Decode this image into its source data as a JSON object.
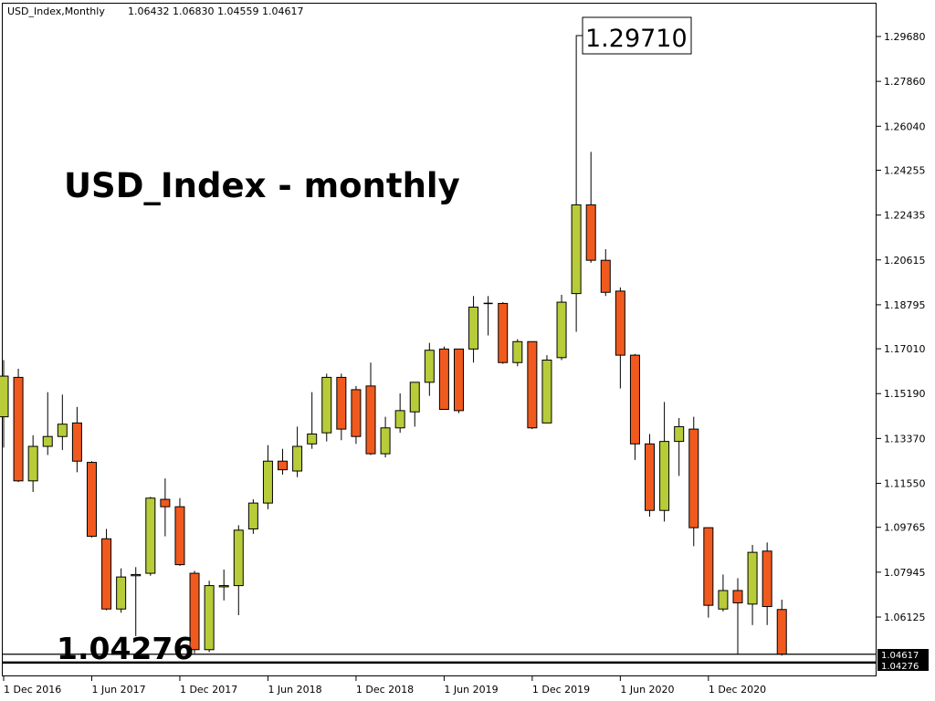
{
  "header": {
    "symbol": "USD_Index,Monthly",
    "ohlc": "1.06432 1.06830 1.04559 1.04617"
  },
  "overlay": {
    "title": "USD_Index - monthly",
    "support_label": "1.04276",
    "high_callout": "1.29710"
  },
  "price_tags": {
    "current": "1.04617",
    "support": "1.04276"
  },
  "colors": {
    "bull": "#b8cc3a",
    "bear": "#f05a1e",
    "outline": "#000000",
    "background": "#ffffff"
  },
  "chart_data": {
    "type": "candlestick",
    "title": "USD_Index - monthly",
    "timeframe": "Monthly",
    "ylim": [
      1.035,
      1.305
    ],
    "y_ticks": [
      "1.29680",
      "1.27860",
      "1.26040",
      "1.24255",
      "1.22435",
      "1.20615",
      "1.18795",
      "1.17010",
      "1.15190",
      "1.13370",
      "1.11550",
      "1.09765",
      "1.07945",
      "1.06125"
    ],
    "x_ticks": [
      {
        "label": "1 Dec 2016",
        "index": 0
      },
      {
        "label": "1 Jun 2017",
        "index": 6
      },
      {
        "label": "1 Dec 2017",
        "index": 12
      },
      {
        "label": "1 Jun 2018",
        "index": 18
      },
      {
        "label": "1 Dec 2018",
        "index": 24
      },
      {
        "label": "1 Jun 2019",
        "index": 30
      },
      {
        "label": "1 Dec 2019",
        "index": 36
      },
      {
        "label": "1 Jun 2020",
        "index": 42
      },
      {
        "label": "1 Dec 2020",
        "index": 48
      }
    ],
    "horizontal_levels": [
      1.04617,
      1.04276
    ],
    "annotated_high": 1.2971,
    "candles": [
      {
        "o": 1.1425,
        "h": 1.1655,
        "l": 1.13,
        "c": 1.159
      },
      {
        "o": 1.1585,
        "h": 1.162,
        "l": 1.116,
        "c": 1.1165
      },
      {
        "o": 1.1165,
        "h": 1.135,
        "l": 1.112,
        "c": 1.1305
      },
      {
        "o": 1.1305,
        "h": 1.1525,
        "l": 1.127,
        "c": 1.1345
      },
      {
        "o": 1.1345,
        "h": 1.1515,
        "l": 1.129,
        "c": 1.1395
      },
      {
        "o": 1.14,
        "h": 1.1465,
        "l": 1.12,
        "c": 1.1245
      },
      {
        "o": 1.124,
        "h": 1.1245,
        "l": 1.0935,
        "c": 1.094
      },
      {
        "o": 1.093,
        "h": 1.097,
        "l": 1.064,
        "c": 1.0645
      },
      {
        "o": 1.0645,
        "h": 1.081,
        "l": 1.063,
        "c": 1.0775
      },
      {
        "o": 1.078,
        "h": 1.0815,
        "l": 1.0535,
        "c": 1.0785
      },
      {
        "o": 1.079,
        "h": 1.11,
        "l": 1.078,
        "c": 1.1095
      },
      {
        "o": 1.109,
        "h": 1.1175,
        "l": 1.094,
        "c": 1.106
      },
      {
        "o": 1.106,
        "h": 1.1095,
        "l": 1.082,
        "c": 1.0825
      },
      {
        "o": 1.079,
        "h": 1.08,
        "l": 1.0465,
        "c": 1.048
      },
      {
        "o": 1.048,
        "h": 1.076,
        "l": 1.047,
        "c": 1.074
      },
      {
        "o": 1.0735,
        "h": 1.0805,
        "l": 1.068,
        "c": 1.074
      },
      {
        "o": 1.074,
        "h": 1.0985,
        "l": 1.062,
        "c": 1.0965
      },
      {
        "o": 1.097,
        "h": 1.109,
        "l": 1.095,
        "c": 1.1075
      },
      {
        "o": 1.1075,
        "h": 1.131,
        "l": 1.105,
        "c": 1.1245
      },
      {
        "o": 1.1245,
        "h": 1.1295,
        "l": 1.119,
        "c": 1.121
      },
      {
        "o": 1.1205,
        "h": 1.1385,
        "l": 1.118,
        "c": 1.1305
      },
      {
        "o": 1.1315,
        "h": 1.1525,
        "l": 1.1295,
        "c": 1.1355
      },
      {
        "o": 1.136,
        "h": 1.16,
        "l": 1.1325,
        "c": 1.1585
      },
      {
        "o": 1.1585,
        "h": 1.16,
        "l": 1.133,
        "c": 1.1375
      },
      {
        "o": 1.1535,
        "h": 1.155,
        "l": 1.1315,
        "c": 1.1345
      },
      {
        "o": 1.155,
        "h": 1.1645,
        "l": 1.127,
        "c": 1.1275
      },
      {
        "o": 1.1275,
        "h": 1.1425,
        "l": 1.126,
        "c": 1.138
      },
      {
        "o": 1.138,
        "h": 1.152,
        "l": 1.136,
        "c": 1.145
      },
      {
        "o": 1.1445,
        "h": 1.1565,
        "l": 1.1385,
        "c": 1.1565
      },
      {
        "o": 1.1565,
        "h": 1.1725,
        "l": 1.151,
        "c": 1.1695
      },
      {
        "o": 1.17,
        "h": 1.171,
        "l": 1.1455,
        "c": 1.1455
      },
      {
        "o": 1.17,
        "h": 1.17,
        "l": 1.144,
        "c": 1.145
      },
      {
        "o": 1.17,
        "h": 1.1915,
        "l": 1.1645,
        "c": 1.187
      },
      {
        "o": 1.1885,
        "h": 1.1915,
        "l": 1.1755,
        "c": 1.1885
      },
      {
        "o": 1.1885,
        "h": 1.189,
        "l": 1.164,
        "c": 1.1645
      },
      {
        "o": 1.1645,
        "h": 1.174,
        "l": 1.163,
        "c": 1.173
      },
      {
        "o": 1.173,
        "h": 1.173,
        "l": 1.1375,
        "c": 1.138
      },
      {
        "o": 1.14,
        "h": 1.1675,
        "l": 1.14,
        "c": 1.1655
      },
      {
        "o": 1.1665,
        "h": 1.192,
        "l": 1.1655,
        "c": 1.189
      },
      {
        "o": 1.1925,
        "h": 1.2971,
        "l": 1.177,
        "c": 1.2285
      },
      {
        "o": 1.2285,
        "h": 1.25,
        "l": 1.205,
        "c": 1.206
      },
      {
        "o": 1.206,
        "h": 1.2105,
        "l": 1.1915,
        "c": 1.193
      },
      {
        "o": 1.1935,
        "h": 1.195,
        "l": 1.154,
        "c": 1.1675
      },
      {
        "o": 1.1675,
        "h": 1.168,
        "l": 1.125,
        "c": 1.1315
      },
      {
        "o": 1.1315,
        "h": 1.1355,
        "l": 1.102,
        "c": 1.1045
      },
      {
        "o": 1.1045,
        "h": 1.1485,
        "l": 1.1,
        "c": 1.1325
      },
      {
        "o": 1.1325,
        "h": 1.142,
        "l": 1.1185,
        "c": 1.1385
      },
      {
        "o": 1.1375,
        "h": 1.1425,
        "l": 1.09,
        "c": 1.0975
      },
      {
        "o": 1.0975,
        "h": 1.0975,
        "l": 1.061,
        "c": 1.066
      },
      {
        "o": 1.0645,
        "h": 1.0785,
        "l": 1.0635,
        "c": 1.072
      },
      {
        "o": 1.072,
        "h": 1.077,
        "l": 1.046,
        "c": 1.067
      },
      {
        "o": 1.0665,
        "h": 1.0905,
        "l": 1.058,
        "c": 1.0875
      },
      {
        "o": 1.088,
        "h": 1.0915,
        "l": 1.058,
        "c": 1.0655
      },
      {
        "o": 1.0643,
        "h": 1.0683,
        "l": 1.0456,
        "c": 1.0462
      }
    ]
  }
}
